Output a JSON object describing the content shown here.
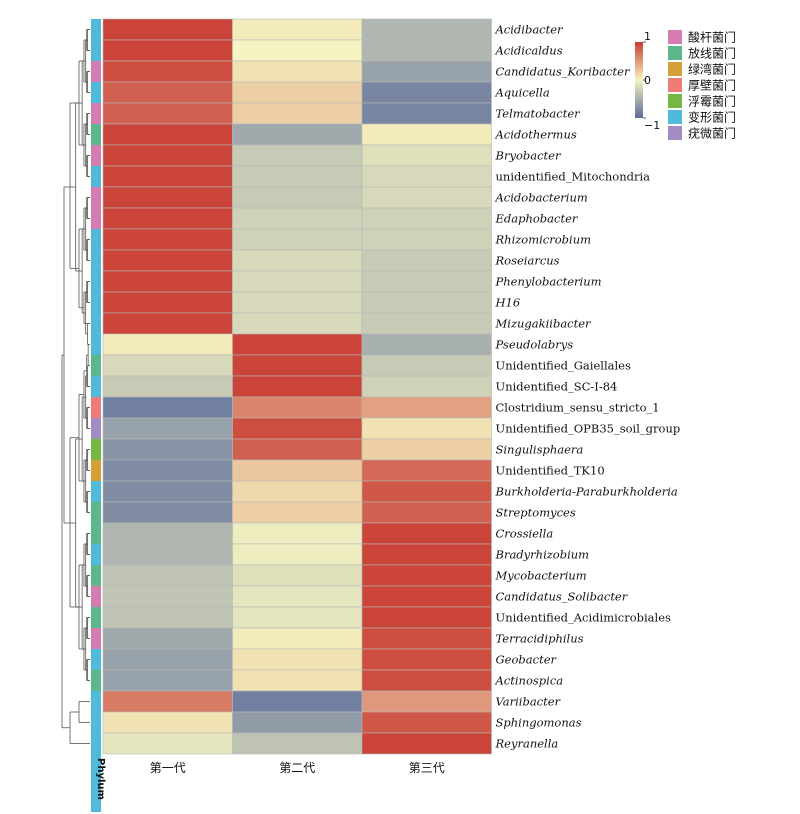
{
  "chart_data": {
    "type": "heatmap",
    "columns": [
      "第一代",
      "第二代",
      "第三代"
    ],
    "phylum_axis_label": "Phylum",
    "scale": {
      "min": -1,
      "max": 1,
      "ticks": [
        {
          "value": 1,
          "label": "1"
        },
        {
          "value": 0,
          "label": "0"
        },
        {
          "value": -1,
          "label": "−1"
        }
      ]
    },
    "phylum_legend": [
      {
        "name": "酸杆菌门",
        "color": "#d57cb1"
      },
      {
        "name": "放线菌门",
        "color": "#5cb88c"
      },
      {
        "name": "绿湾菌门",
        "color": "#d6a039"
      },
      {
        "name": "厚壁菌门",
        "color": "#ef7c78"
      },
      {
        "name": "浮霉菌门",
        "color": "#74b843"
      },
      {
        "name": "变形菌门",
        "color": "#4fbad9"
      },
      {
        "name": "疣微菌门",
        "color": "#a28cc4"
      }
    ],
    "rows": [
      {
        "label": "Acidibacter",
        "italic": true,
        "phylum": 5,
        "values": [
          0.95,
          0.05,
          -0.45
        ]
      },
      {
        "label": "Acidicaldus",
        "italic": true,
        "phylum": 5,
        "values": [
          0.95,
          0.0,
          -0.45
        ]
      },
      {
        "label": "Candidatus_Koribacter",
        "italic": true,
        "phylum": 0,
        "values": [
          0.9,
          0.1,
          -0.6
        ]
      },
      {
        "label": "Aquicella",
        "italic": true,
        "phylum": 5,
        "values": [
          0.8,
          0.2,
          -0.8
        ]
      },
      {
        "label": "Telmatobacter",
        "italic": true,
        "phylum": 0,
        "values": [
          0.8,
          0.2,
          -0.8
        ]
      },
      {
        "label": "Acidothermus",
        "italic": true,
        "phylum": 1,
        "values": [
          0.95,
          -0.55,
          0.05
        ]
      },
      {
        "label": "Bryobacter",
        "italic": true,
        "phylum": 0,
        "values": [
          0.95,
          -0.3,
          -0.15
        ]
      },
      {
        "label": "unidentified_Mitochondria",
        "italic": false,
        "phylum": 5,
        "values": [
          0.95,
          -0.3,
          -0.2
        ]
      },
      {
        "label": "Acidobacterium",
        "italic": true,
        "phylum": 0,
        "values": [
          0.95,
          -0.3,
          -0.2
        ]
      },
      {
        "label": "Edaphobacter",
        "italic": true,
        "phylum": 0,
        "values": [
          0.95,
          -0.25,
          -0.25
        ]
      },
      {
        "label": "Rhizomicrobium",
        "italic": true,
        "phylum": 5,
        "values": [
          0.95,
          -0.25,
          -0.25
        ]
      },
      {
        "label": "Roseiarcus",
        "italic": true,
        "phylum": 5,
        "values": [
          0.95,
          -0.2,
          -0.3
        ]
      },
      {
        "label": "Phenylobacterium",
        "italic": true,
        "phylum": 5,
        "values": [
          0.95,
          -0.2,
          -0.3
        ]
      },
      {
        "label": "H16",
        "italic": true,
        "phylum": 5,
        "values": [
          0.95,
          -0.2,
          -0.3
        ]
      },
      {
        "label": "Mizugakiibacter",
        "italic": true,
        "phylum": 5,
        "values": [
          0.95,
          -0.2,
          -0.3
        ]
      },
      {
        "label": "Pseudolabrys",
        "italic": true,
        "phylum": 5,
        "values": [
          0.05,
          0.95,
          -0.5
        ]
      },
      {
        "label": "Unidentified_Gaiellales",
        "italic": false,
        "phylum": 1,
        "values": [
          -0.2,
          0.95,
          -0.3
        ]
      },
      {
        "label": "Unidentified_SC-I-84",
        "italic": false,
        "phylum": 5,
        "values": [
          -0.3,
          0.95,
          -0.25
        ]
      },
      {
        "label": "Clostridium_sensu_stricto_1",
        "italic": false,
        "phylum": 3,
        "values": [
          -0.85,
          0.6,
          0.45
        ]
      },
      {
        "label": "Unidentified_OPB35_soil_group",
        "italic": false,
        "phylum": 6,
        "values": [
          -0.6,
          0.9,
          0.1
        ]
      },
      {
        "label": "Singulisphaera",
        "italic": true,
        "phylum": 4,
        "values": [
          -0.7,
          0.8,
          0.2
        ]
      },
      {
        "label": "Unidentified_TK10",
        "italic": false,
        "phylum": 2,
        "values": [
          -0.75,
          0.25,
          0.75
        ]
      },
      {
        "label": "Burkholderia-Paraburkholderia",
        "italic": true,
        "phylum": 5,
        "values": [
          -0.75,
          0.15,
          0.85
        ]
      },
      {
        "label": "Streptomyces",
        "italic": true,
        "phylum": 1,
        "values": [
          -0.75,
          0.2,
          0.8
        ]
      },
      {
        "label": "Crossiella",
        "italic": true,
        "phylum": 1,
        "values": [
          -0.45,
          -0.05,
          0.95
        ]
      },
      {
        "label": "Bradyrhizobium",
        "italic": true,
        "phylum": 5,
        "values": [
          -0.45,
          -0.05,
          0.95
        ]
      },
      {
        "label": "Mycobacterium",
        "italic": true,
        "phylum": 1,
        "values": [
          -0.35,
          -0.15,
          0.95
        ]
      },
      {
        "label": "Candidatus_Solibacter",
        "italic": true,
        "phylum": 0,
        "values": [
          -0.35,
          -0.1,
          0.95
        ]
      },
      {
        "label": "Unidentified_Acidimicrobiales",
        "italic": false,
        "phylum": 1,
        "values": [
          -0.35,
          -0.1,
          0.95
        ]
      },
      {
        "label": "Terracidiphilus",
        "italic": true,
        "phylum": 0,
        "values": [
          -0.55,
          0.05,
          0.9
        ]
      },
      {
        "label": "Geobacter",
        "italic": true,
        "phylum": 5,
        "values": [
          -0.6,
          0.1,
          0.9
        ]
      },
      {
        "label": "Actinospica",
        "italic": true,
        "phylum": 1,
        "values": [
          -0.6,
          0.1,
          0.9
        ]
      },
      {
        "label": "Variibacter",
        "italic": true,
        "phylum": 5,
        "values": [
          0.65,
          -0.85,
          0.5
        ]
      },
      {
        "label": "Sphingomonas",
        "italic": true,
        "phylum": 5,
        "values": [
          0.1,
          -0.65,
          0.85
        ]
      },
      {
        "label": "Reyranella",
        "italic": true,
        "phylum": 5,
        "values": [
          -0.1,
          -0.35,
          0.95
        ]
      }
    ],
    "legend_position": "top-right",
    "row_dendrogram": true,
    "colors": {
      "high": "#c83b33",
      "mid": "#f6f4c2",
      "low": "#5a6b9a"
    }
  }
}
